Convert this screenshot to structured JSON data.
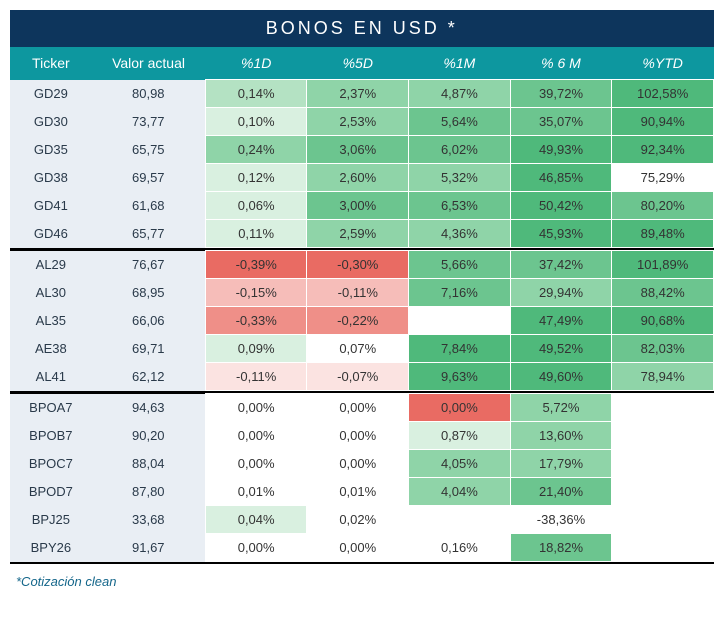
{
  "title": "BONOS EN USD *",
  "footnote": "*Cotización clean",
  "columns": [
    "Ticker",
    "Valor actual",
    "%1D",
    "%5D",
    "%1M",
    "% 6 M",
    "%YTD"
  ],
  "palette": {
    "title_bg": "#0d355c",
    "header_bg": "#0d979f",
    "row_alt_bg": "#e9eef4",
    "neutral_bg": "#ffffff",
    "border": "#ffffff",
    "text": "#333333",
    "footnote_color": "#14668a",
    "heat": {
      "pos5": "#4fb97b",
      "pos4": "#6cc58f",
      "pos3": "#8fd4a8",
      "pos2": "#b4e2c3",
      "pos1": "#d9f0e0",
      "zero": "#ffffff",
      "neg1": "#fbe3e1",
      "neg2": "#f6bdb9",
      "neg3": "#ef8f88",
      "neg4": "#e96b63"
    }
  },
  "groups": [
    {
      "rows": [
        {
          "ticker": "GD29",
          "valor": "80,98",
          "cells": [
            {
              "v": "0,14%",
              "c": "pos2"
            },
            {
              "v": "2,37%",
              "c": "pos3"
            },
            {
              "v": "4,87%",
              "c": "pos3"
            },
            {
              "v": "39,72%",
              "c": "pos4"
            },
            {
              "v": "102,58%",
              "c": "pos5"
            }
          ]
        },
        {
          "ticker": "GD30",
          "valor": "73,77",
          "cells": [
            {
              "v": "0,10%",
              "c": "pos1"
            },
            {
              "v": "2,53%",
              "c": "pos3"
            },
            {
              "v": "5,64%",
              "c": "pos4"
            },
            {
              "v": "35,07%",
              "c": "pos4"
            },
            {
              "v": "90,94%",
              "c": "pos5"
            }
          ]
        },
        {
          "ticker": "GD35",
          "valor": "65,75",
          "cells": [
            {
              "v": "0,24%",
              "c": "pos3"
            },
            {
              "v": "3,06%",
              "c": "pos4"
            },
            {
              "v": "6,02%",
              "c": "pos4"
            },
            {
              "v": "49,93%",
              "c": "pos5"
            },
            {
              "v": "92,34%",
              "c": "pos5"
            }
          ]
        },
        {
          "ticker": "GD38",
          "valor": "69,57",
          "cells": [
            {
              "v": "0,12%",
              "c": "pos1"
            },
            {
              "v": "2,60%",
              "c": "pos3"
            },
            {
              "v": "5,32%",
              "c": "pos3"
            },
            {
              "v": "46,85%",
              "c": "pos5"
            },
            {
              "v": "75,29%",
              "c": "zero"
            }
          ]
        },
        {
          "ticker": "GD41",
          "valor": "61,68",
          "cells": [
            {
              "v": "0,06%",
              "c": "pos1"
            },
            {
              "v": "3,00%",
              "c": "pos4"
            },
            {
              "v": "6,53%",
              "c": "pos4"
            },
            {
              "v": "50,42%",
              "c": "pos5"
            },
            {
              "v": "80,20%",
              "c": "pos4"
            }
          ]
        },
        {
          "ticker": "GD46",
          "valor": "65,77",
          "cells": [
            {
              "v": "0,11%",
              "c": "pos1"
            },
            {
              "v": "2,59%",
              "c": "pos3"
            },
            {
              "v": "4,36%",
              "c": "pos3"
            },
            {
              "v": "45,93%",
              "c": "pos5"
            },
            {
              "v": "89,48%",
              "c": "pos5"
            }
          ]
        }
      ]
    },
    {
      "rows": [
        {
          "ticker": "AL29",
          "valor": "76,67",
          "cells": [
            {
              "v": "-0,39%",
              "c": "neg4"
            },
            {
              "v": "-0,30%",
              "c": "neg4"
            },
            {
              "v": "5,66%",
              "c": "pos4"
            },
            {
              "v": "37,42%",
              "c": "pos4"
            },
            {
              "v": "101,89%",
              "c": "pos5"
            }
          ]
        },
        {
          "ticker": "AL30",
          "valor": "68,95",
          "cells": [
            {
              "v": "-0,15%",
              "c": "neg2"
            },
            {
              "v": "-0,11%",
              "c": "neg2"
            },
            {
              "v": "7,16%",
              "c": "pos4"
            },
            {
              "v": "29,94%",
              "c": "pos3"
            },
            {
              "v": "88,42%",
              "c": "pos4"
            }
          ]
        },
        {
          "ticker": "AL35",
          "valor": "66,06",
          "cells": [
            {
              "v": "-0,33%",
              "c": "neg3"
            },
            {
              "v": "-0,22%",
              "c": "neg3"
            },
            {
              "v": "",
              "c": "zero"
            },
            {
              "v": "47,49%",
              "c": "pos5"
            },
            {
              "v": "90,68%",
              "c": "pos5"
            }
          ]
        },
        {
          "ticker": "AE38",
          "valor": "69,71",
          "cells": [
            {
              "v": "0,09%",
              "c": "pos1"
            },
            {
              "v": "0,07%",
              "c": "zero"
            },
            {
              "v": "7,84%",
              "c": "pos5"
            },
            {
              "v": "49,52%",
              "c": "pos5"
            },
            {
              "v": "82,03%",
              "c": "pos4"
            }
          ]
        },
        {
          "ticker": "AL41",
          "valor": "62,12",
          "cells": [
            {
              "v": "-0,11%",
              "c": "neg1"
            },
            {
              "v": "-0,07%",
              "c": "neg1"
            },
            {
              "v": "9,63%",
              "c": "pos5"
            },
            {
              "v": "49,60%",
              "c": "pos5"
            },
            {
              "v": "78,94%",
              "c": "pos3"
            }
          ]
        }
      ]
    },
    {
      "rows": [
        {
          "ticker": "BPOA7",
          "valor": "94,63",
          "cells": [
            {
              "v": "0,00%",
              "c": "zero"
            },
            {
              "v": "0,00%",
              "c": "zero"
            },
            {
              "v": "0,00%",
              "c": "neg4"
            },
            {
              "v": "5,72%",
              "c": "pos3"
            },
            {
              "v": "",
              "c": "zero"
            }
          ]
        },
        {
          "ticker": "BPOB7",
          "valor": "90,20",
          "cells": [
            {
              "v": "0,00%",
              "c": "zero"
            },
            {
              "v": "0,00%",
              "c": "zero"
            },
            {
              "v": "0,87%",
              "c": "pos1"
            },
            {
              "v": "13,60%",
              "c": "pos3"
            },
            {
              "v": "",
              "c": "zero"
            }
          ]
        },
        {
          "ticker": "BPOC7",
          "valor": "88,04",
          "cells": [
            {
              "v": "0,00%",
              "c": "zero"
            },
            {
              "v": "0,00%",
              "c": "zero"
            },
            {
              "v": "4,05%",
              "c": "pos3"
            },
            {
              "v": "17,79%",
              "c": "pos3"
            },
            {
              "v": "",
              "c": "zero"
            }
          ]
        },
        {
          "ticker": "BPOD7",
          "valor": "87,80",
          "cells": [
            {
              "v": "0,01%",
              "c": "zero"
            },
            {
              "v": "0,01%",
              "c": "zero"
            },
            {
              "v": "4,04%",
              "c": "pos3"
            },
            {
              "v": "21,40%",
              "c": "pos4"
            },
            {
              "v": "",
              "c": "zero"
            }
          ]
        },
        {
          "ticker": "BPJ25",
          "valor": "33,68",
          "cells": [
            {
              "v": "0,04%",
              "c": "pos1"
            },
            {
              "v": "0,02%",
              "c": "zero"
            },
            {
              "v": "",
              "c": "zero"
            },
            {
              "v": "-38,36%",
              "c": "zero"
            },
            {
              "v": "",
              "c": "zero"
            }
          ]
        },
        {
          "ticker": "BPY26",
          "valor": "91,67",
          "cells": [
            {
              "v": "0,00%",
              "c": "zero"
            },
            {
              "v": "0,00%",
              "c": "zero"
            },
            {
              "v": "0,16%",
              "c": "zero"
            },
            {
              "v": "18,82%",
              "c": "pos4"
            },
            {
              "v": "",
              "c": "zero"
            }
          ]
        }
      ]
    }
  ]
}
